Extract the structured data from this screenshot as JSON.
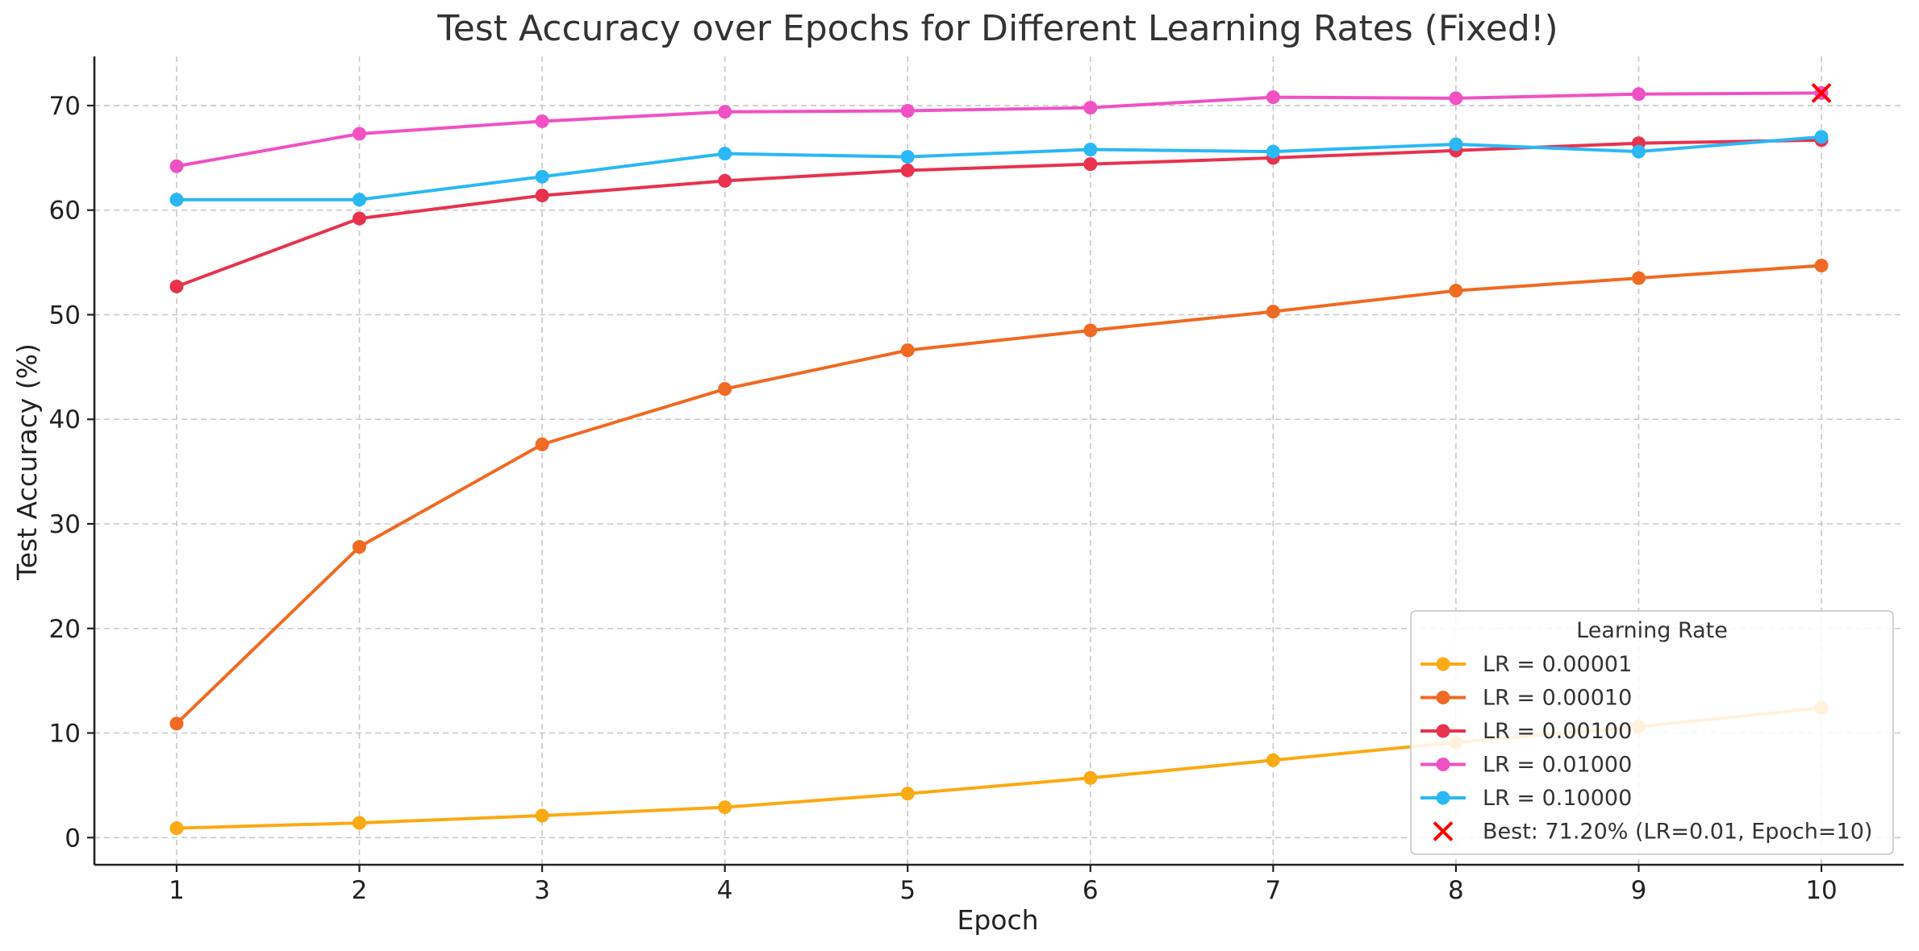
{
  "chart_data": {
    "type": "line",
    "title": "Test Accuracy over Epochs for Different Learning Rates (Fixed!)",
    "xlabel": "Epoch",
    "ylabel": "Test Accuracy (%)",
    "x": [
      1,
      2,
      3,
      4,
      5,
      6,
      7,
      8,
      9,
      10
    ],
    "xlim": [
      0.55,
      10.45
    ],
    "ylim": [
      -2.6,
      74.7
    ],
    "yticks": [
      0,
      10,
      20,
      30,
      40,
      50,
      60,
      70
    ],
    "grid": true,
    "legend": {
      "title": "Learning Rate",
      "placement": "bottom-right"
    },
    "series": [
      {
        "name": "LR = 0.00001",
        "color": "#FAAA14",
        "values": [
          0.9,
          1.4,
          2.1,
          2.9,
          4.2,
          5.7,
          7.4,
          9.1,
          10.6,
          12.4
        ]
      },
      {
        "name": "LR = 0.00010",
        "color": "#F06A23",
        "values": [
          10.9,
          27.8,
          37.6,
          42.9,
          46.6,
          48.5,
          50.3,
          52.3,
          53.5,
          54.7
        ]
      },
      {
        "name": "LR = 0.00100",
        "color": "#E8324E",
        "values": [
          52.7,
          59.2,
          61.4,
          62.8,
          63.8,
          64.4,
          65.0,
          65.7,
          66.4,
          66.7
        ]
      },
      {
        "name": "LR = 0.01000",
        "color": "#F052C4",
        "values": [
          64.2,
          67.3,
          68.5,
          69.4,
          69.5,
          69.8,
          70.8,
          70.7,
          71.1,
          71.2
        ]
      },
      {
        "name": "LR = 0.10000",
        "color": "#2BB8F5",
        "values": [
          61.0,
          61.0,
          63.2,
          65.4,
          65.1,
          65.8,
          65.6,
          66.3,
          65.6,
          67.0
        ]
      }
    ],
    "annotations": [
      {
        "type": "marker",
        "marker": "x",
        "color": "#FF0000",
        "x": 10,
        "y": 71.2,
        "label": "Best: 71.20% (LR=0.01, Epoch=10)"
      }
    ]
  }
}
